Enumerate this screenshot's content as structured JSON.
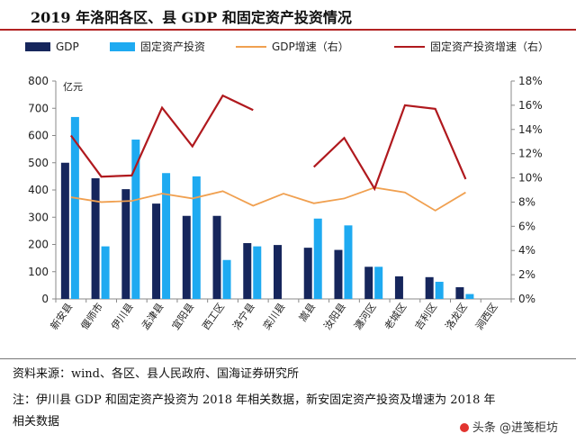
{
  "header": {
    "title": "2019 年洛阳各区、县 GDP 和固定资产投资情况"
  },
  "chart_data": {
    "type": "bar",
    "y_unit_label": "亿元",
    "ylim_left": [
      0,
      800
    ],
    "yticks_left": [
      0,
      100,
      200,
      300,
      400,
      500,
      600,
      700,
      800
    ],
    "ylim_right": [
      0,
      18
    ],
    "yticks_right": [
      "0%",
      "2%",
      "4%",
      "6%",
      "8%",
      "10%",
      "12%",
      "14%",
      "16%",
      "18%"
    ],
    "legend_position": "top",
    "categories": [
      "新安县",
      "偃师市",
      "伊川县",
      "孟津县",
      "宜阳县",
      "西工区",
      "洛宁县",
      "栾川县",
      "嵩县",
      "汝阳县",
      "瀍河区",
      "老城区",
      "吉利区",
      "洛龙区",
      "涧西区"
    ],
    "series": [
      {
        "name": "GDP",
        "kind": "bar",
        "axis": "left",
        "color": "#16265c",
        "values": [
          500,
          443,
          403,
          350,
          305,
          305,
          205,
          198,
          188,
          180,
          118,
          83,
          80,
          43,
          null
        ]
      },
      {
        "name": "固定资产投资",
        "kind": "bar",
        "axis": "left",
        "color": "#1eaaf1",
        "values": [
          668,
          193,
          585,
          462,
          450,
          143,
          193,
          null,
          295,
          270,
          118,
          null,
          63,
          18,
          null
        ]
      },
      {
        "name": "GDP增速（右）",
        "kind": "line",
        "axis": "right",
        "color": "#f0a050",
        "values": [
          8.4,
          8.0,
          8.1,
          8.7,
          8.3,
          8.9,
          7.7,
          8.7,
          7.9,
          8.3,
          9.2,
          8.8,
          7.3,
          8.8,
          null
        ]
      },
      {
        "name": "固定资产投资增速（右）",
        "kind": "line",
        "axis": "right",
        "color": "#b0191e",
        "values": [
          13.5,
          10.1,
          10.2,
          15.8,
          12.6,
          16.8,
          15.6,
          null,
          10.9,
          13.3,
          9.1,
          16.0,
          15.7,
          9.9,
          null
        ]
      }
    ]
  },
  "notes": {
    "source": "资料来源：wind、各区、县人民政府、国海证券研究所",
    "note_line1": "注：伊川县 GDP 和固定资产投资为 2018 年相关数据，新安固定资产投资及增速为 2018 年",
    "note_line2": "相关数据"
  },
  "watermark": {
    "text": "头条 @进笺柜坊"
  }
}
